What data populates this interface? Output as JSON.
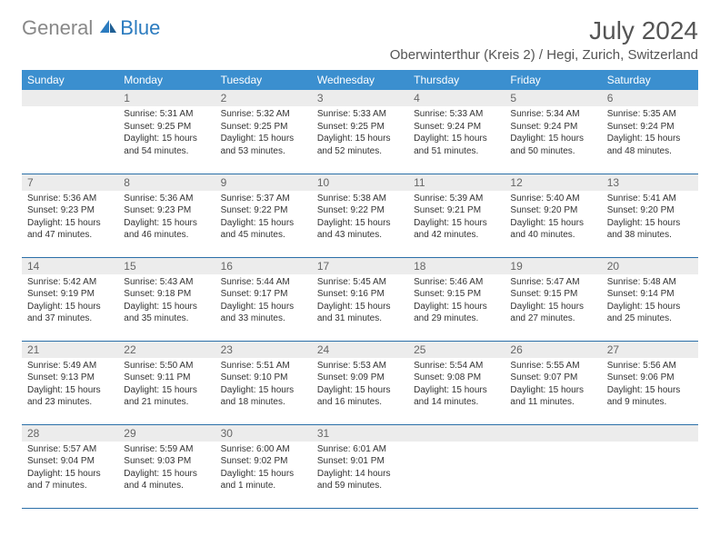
{
  "brand": {
    "gray": "General",
    "blue": "Blue"
  },
  "title": "July 2024",
  "location": "Oberwinterthur (Kreis 2) / Hegi, Zurich, Switzerland",
  "colors": {
    "header_bg": "#3b8fcf",
    "header_text": "#ffffff",
    "daynum_bg": "#ececec",
    "row_border": "#2b6fa8",
    "logo_gray": "#888888",
    "logo_blue": "#2b7bbf"
  },
  "weekdays": [
    "Sunday",
    "Monday",
    "Tuesday",
    "Wednesday",
    "Thursday",
    "Friday",
    "Saturday"
  ],
  "weeks": [
    [
      null,
      {
        "n": "1",
        "sr": "5:31 AM",
        "ss": "9:25 PM",
        "dl": "15 hours and 54 minutes."
      },
      {
        "n": "2",
        "sr": "5:32 AM",
        "ss": "9:25 PM",
        "dl": "15 hours and 53 minutes."
      },
      {
        "n": "3",
        "sr": "5:33 AM",
        "ss": "9:25 PM",
        "dl": "15 hours and 52 minutes."
      },
      {
        "n": "4",
        "sr": "5:33 AM",
        "ss": "9:24 PM",
        "dl": "15 hours and 51 minutes."
      },
      {
        "n": "5",
        "sr": "5:34 AM",
        "ss": "9:24 PM",
        "dl": "15 hours and 50 minutes."
      },
      {
        "n": "6",
        "sr": "5:35 AM",
        "ss": "9:24 PM",
        "dl": "15 hours and 48 minutes."
      }
    ],
    [
      {
        "n": "7",
        "sr": "5:36 AM",
        "ss": "9:23 PM",
        "dl": "15 hours and 47 minutes."
      },
      {
        "n": "8",
        "sr": "5:36 AM",
        "ss": "9:23 PM",
        "dl": "15 hours and 46 minutes."
      },
      {
        "n": "9",
        "sr": "5:37 AM",
        "ss": "9:22 PM",
        "dl": "15 hours and 45 minutes."
      },
      {
        "n": "10",
        "sr": "5:38 AM",
        "ss": "9:22 PM",
        "dl": "15 hours and 43 minutes."
      },
      {
        "n": "11",
        "sr": "5:39 AM",
        "ss": "9:21 PM",
        "dl": "15 hours and 42 minutes."
      },
      {
        "n": "12",
        "sr": "5:40 AM",
        "ss": "9:20 PM",
        "dl": "15 hours and 40 minutes."
      },
      {
        "n": "13",
        "sr": "5:41 AM",
        "ss": "9:20 PM",
        "dl": "15 hours and 38 minutes."
      }
    ],
    [
      {
        "n": "14",
        "sr": "5:42 AM",
        "ss": "9:19 PM",
        "dl": "15 hours and 37 minutes."
      },
      {
        "n": "15",
        "sr": "5:43 AM",
        "ss": "9:18 PM",
        "dl": "15 hours and 35 minutes."
      },
      {
        "n": "16",
        "sr": "5:44 AM",
        "ss": "9:17 PM",
        "dl": "15 hours and 33 minutes."
      },
      {
        "n": "17",
        "sr": "5:45 AM",
        "ss": "9:16 PM",
        "dl": "15 hours and 31 minutes."
      },
      {
        "n": "18",
        "sr": "5:46 AM",
        "ss": "9:15 PM",
        "dl": "15 hours and 29 minutes."
      },
      {
        "n": "19",
        "sr": "5:47 AM",
        "ss": "9:15 PM",
        "dl": "15 hours and 27 minutes."
      },
      {
        "n": "20",
        "sr": "5:48 AM",
        "ss": "9:14 PM",
        "dl": "15 hours and 25 minutes."
      }
    ],
    [
      {
        "n": "21",
        "sr": "5:49 AM",
        "ss": "9:13 PM",
        "dl": "15 hours and 23 minutes."
      },
      {
        "n": "22",
        "sr": "5:50 AM",
        "ss": "9:11 PM",
        "dl": "15 hours and 21 minutes."
      },
      {
        "n": "23",
        "sr": "5:51 AM",
        "ss": "9:10 PM",
        "dl": "15 hours and 18 minutes."
      },
      {
        "n": "24",
        "sr": "5:53 AM",
        "ss": "9:09 PM",
        "dl": "15 hours and 16 minutes."
      },
      {
        "n": "25",
        "sr": "5:54 AM",
        "ss": "9:08 PM",
        "dl": "15 hours and 14 minutes."
      },
      {
        "n": "26",
        "sr": "5:55 AM",
        "ss": "9:07 PM",
        "dl": "15 hours and 11 minutes."
      },
      {
        "n": "27",
        "sr": "5:56 AM",
        "ss": "9:06 PM",
        "dl": "15 hours and 9 minutes."
      }
    ],
    [
      {
        "n": "28",
        "sr": "5:57 AM",
        "ss": "9:04 PM",
        "dl": "15 hours and 7 minutes."
      },
      {
        "n": "29",
        "sr": "5:59 AM",
        "ss": "9:03 PM",
        "dl": "15 hours and 4 minutes."
      },
      {
        "n": "30",
        "sr": "6:00 AM",
        "ss": "9:02 PM",
        "dl": "15 hours and 1 minute."
      },
      {
        "n": "31",
        "sr": "6:01 AM",
        "ss": "9:01 PM",
        "dl": "14 hours and 59 minutes."
      },
      null,
      null,
      null
    ]
  ],
  "labels": {
    "sunrise": "Sunrise:",
    "sunset": "Sunset:",
    "daylight": "Daylight:"
  }
}
